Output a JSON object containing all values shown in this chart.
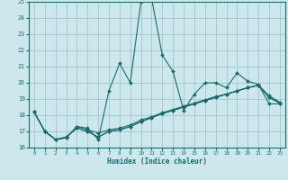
{
  "title": "",
  "xlabel": "Humidex (Indice chaleur)",
  "ylabel": "",
  "bg_color": "#cce8ec",
  "grid_color": "#9bbfc4",
  "line_color": "#1a6b6b",
  "xlim": [
    -0.5,
    23.5
  ],
  "ylim": [
    16,
    25
  ],
  "xticks": [
    0,
    1,
    2,
    3,
    4,
    5,
    6,
    7,
    8,
    9,
    10,
    11,
    12,
    13,
    14,
    15,
    16,
    17,
    18,
    19,
    20,
    21,
    22,
    23
  ],
  "yticks": [
    16,
    17,
    18,
    19,
    20,
    21,
    22,
    23,
    24,
    25
  ],
  "lines": [
    {
      "x": [
        0,
        1,
        2,
        3,
        4,
        5,
        6,
        7,
        8,
        9,
        10,
        11,
        12,
        13,
        14,
        15,
        16,
        17,
        18,
        19,
        20,
        21,
        22,
        23
      ],
      "y": [
        18.2,
        17.0,
        16.5,
        16.6,
        17.3,
        17.2,
        16.5,
        19.5,
        21.2,
        20.0,
        25.0,
        25.2,
        21.7,
        20.7,
        18.3,
        19.3,
        20.0,
        20.0,
        19.7,
        20.6,
        20.1,
        19.9,
        18.7,
        18.7
      ]
    },
    {
      "x": [
        0,
        1,
        2,
        3,
        4,
        5,
        6,
        7,
        8,
        9,
        10,
        11,
        12,
        13,
        14,
        15,
        16,
        17,
        18,
        19,
        20,
        21,
        22,
        23
      ],
      "y": [
        18.2,
        17.0,
        16.5,
        16.6,
        17.3,
        17.1,
        16.9,
        17.1,
        17.2,
        17.4,
        17.7,
        17.9,
        18.15,
        18.35,
        18.55,
        18.75,
        18.95,
        19.15,
        19.3,
        19.5,
        19.7,
        19.85,
        19.2,
        18.8
      ]
    },
    {
      "x": [
        0,
        1,
        2,
        3,
        4,
        5,
        6,
        7,
        8,
        9,
        10,
        11,
        12,
        13,
        14,
        15,
        16,
        17,
        18,
        19,
        20,
        21,
        22,
        23
      ],
      "y": [
        18.2,
        17.0,
        16.5,
        16.65,
        17.2,
        17.0,
        16.65,
        17.0,
        17.1,
        17.3,
        17.6,
        17.85,
        18.1,
        18.3,
        18.5,
        18.7,
        18.9,
        19.1,
        19.3,
        19.5,
        19.7,
        19.85,
        19.1,
        18.75
      ]
    },
    {
      "x": [
        0,
        1,
        2,
        3,
        4,
        5,
        6,
        7,
        8,
        9,
        10,
        11,
        12,
        13,
        14,
        15,
        16,
        17,
        18,
        19,
        20,
        21,
        22,
        23
      ],
      "y": [
        18.2,
        17.0,
        16.5,
        16.65,
        17.2,
        17.0,
        16.65,
        17.0,
        17.1,
        17.3,
        17.6,
        17.85,
        18.1,
        18.3,
        18.5,
        18.7,
        18.9,
        19.1,
        19.3,
        19.5,
        19.7,
        19.85,
        19.1,
        18.75
      ]
    }
  ]
}
